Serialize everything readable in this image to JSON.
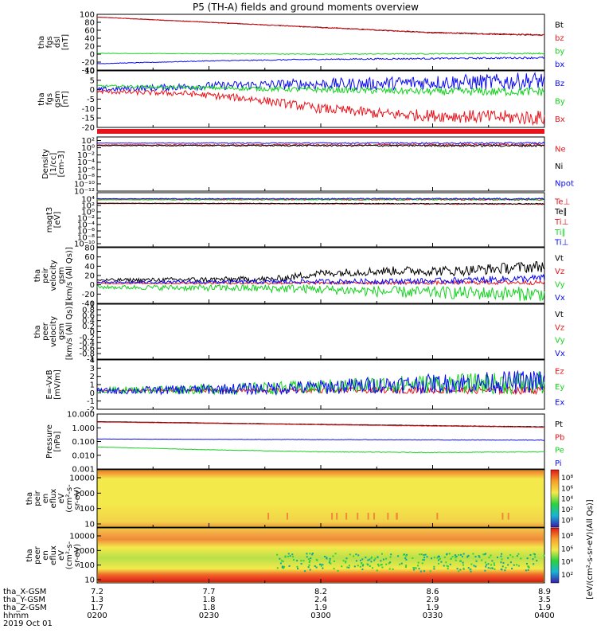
{
  "title": "P5 (TH-A) fields and ground moments overview",
  "colors": {
    "black": "#000000",
    "red": "#e8141c",
    "green": "#14d21e",
    "blue": "#0a0af5",
    "spec_bg": "#f4e94a"
  },
  "chart_data": [
    {
      "type": "line",
      "panel": "fgs_dsl",
      "ylabel": [
        "tha",
        "fgs",
        "dsl",
        "[nT]"
      ],
      "ylim": [
        -40,
        100
      ],
      "yticks": [
        100,
        80,
        60,
        40,
        20,
        0,
        -20,
        -40
      ],
      "series": [
        {
          "name": "Bt",
          "color": "black",
          "x": [
            0,
            0.5,
            1,
            1.5,
            2
          ],
          "y": [
            93,
            80,
            67,
            54,
            48
          ],
          "noise": 1
        },
        {
          "name": "bz",
          "color": "red",
          "x": [
            0,
            0.5,
            1,
            1.5,
            2
          ],
          "y": [
            93,
            80,
            67,
            54,
            48
          ],
          "noise": 1
        },
        {
          "name": "by",
          "color": "green",
          "x": [
            0,
            1,
            2
          ],
          "y": [
            2,
            0,
            2
          ],
          "noise": 1
        },
        {
          "name": "bx",
          "color": "blue",
          "x": [
            0,
            0.5,
            1,
            1.5,
            2
          ],
          "y": [
            -24,
            -17,
            -13,
            -11,
            -9
          ],
          "noise": 1.5
        }
      ]
    },
    {
      "type": "line",
      "panel": "fgs_gsm",
      "ylabel": [
        "tha",
        "fgs",
        "gsm",
        "[nT]"
      ],
      "ylim": [
        -20,
        10
      ],
      "yticks": [
        10,
        5,
        0,
        -5,
        -10,
        -15,
        -20
      ],
      "series": [
        {
          "name": "Bz",
          "color": "blue",
          "x": [
            0,
            0.5,
            0.9,
            1.2,
            1.5,
            1.8,
            2
          ],
          "y": [
            0,
            2,
            3,
            3,
            4,
            4,
            5
          ],
          "noise": 3
        },
        {
          "name": "By",
          "color": "green",
          "x": [
            0,
            0.5,
            1,
            1.5,
            2
          ],
          "y": [
            2,
            1,
            0,
            -1,
            -1
          ],
          "noise": 1.5
        },
        {
          "name": "Bx",
          "color": "red",
          "x": [
            0,
            0.4,
            0.7,
            1.0,
            1.3,
            1.6,
            2
          ],
          "y": [
            -1,
            -2,
            -5,
            -10,
            -13,
            -14,
            -15
          ],
          "noise": 2.5
        }
      ]
    },
    {
      "type": "line",
      "panel": "density",
      "ylabel": [
        "Density",
        "[1/cc]",
        "[cm-3]"
      ],
      "log": true,
      "ylim": [
        -12,
        3
      ],
      "ytick_labels": [
        "10²",
        "10⁰",
        "10⁻²",
        "10⁻⁴",
        "10⁻⁶",
        "10⁻⁸",
        "10⁻¹⁰",
        "10⁻¹²"
      ],
      "ytick_exp": [
        2,
        0,
        -2,
        -4,
        -6,
        -8,
        -10,
        -12
      ],
      "series": [
        {
          "name": "Ne",
          "color": "red",
          "x": [
            0,
            2
          ],
          "y": [
            0.8,
            0.8
          ],
          "noise": 0.2
        },
        {
          "name": "Ni",
          "color": "black",
          "x": [
            0,
            2
          ],
          "y": [
            0.6,
            0.6
          ],
          "noise": 0.2
        },
        {
          "name": "Npot",
          "color": "blue",
          "x": [
            0,
            2
          ],
          "y": [
            1.3,
            1.3
          ],
          "noise": 0.15
        }
      ]
    },
    {
      "type": "line",
      "panel": "moms_temp",
      "ylabel": [
        "magt3",
        "[eV]"
      ],
      "log": true,
      "ylim": [
        -11,
        6
      ],
      "ytick_labels": [
        "10⁴",
        "10²",
        "10⁰",
        "10⁻²",
        "10⁻⁴",
        "10⁻⁶",
        "10⁻⁸",
        "10⁻¹⁰"
      ],
      "ytick_exp": [
        4,
        2,
        0,
        -2,
        -4,
        -6,
        -8,
        -10
      ],
      "series": [
        {
          "name": "Te⊥",
          "color": "red",
          "x": [
            0,
            2
          ],
          "y": [
            2.6,
            2.4
          ],
          "noise": 0.1
        },
        {
          "name": "Te∥",
          "color": "black",
          "x": [
            0,
            2
          ],
          "y": [
            2.7,
            2.5
          ],
          "noise": 0.1
        },
        {
          "name": "Ti⊥",
          "color": "red",
          "x": [
            0,
            2
          ],
          "y": [
            3.8,
            3.8
          ],
          "noise": 0.15
        },
        {
          "name": "Ti∥",
          "color": "green",
          "x": [
            0,
            2
          ],
          "y": [
            3.9,
            3.9
          ],
          "noise": 0.2
        },
        {
          "name": "Ti⊥",
          "color": "blue",
          "x": [
            0,
            2
          ],
          "y": [
            4.1,
            4.1
          ],
          "noise": 0.15
        }
      ]
    },
    {
      "type": "line",
      "panel": "peir_velocity",
      "ylabel": [
        "tha",
        "peir",
        "velocity",
        "gsm",
        "[km/s (All Qs)]"
      ],
      "ylim": [
        -40,
        80
      ],
      "yticks": [
        80,
        60,
        40,
        20,
        0,
        -20,
        -40
      ],
      "series": [
        {
          "name": "Vt",
          "color": "black",
          "x": [
            0,
            0.8,
            1.0,
            1.3,
            1.6,
            2
          ],
          "y": [
            10,
            12,
            25,
            30,
            30,
            40
          ],
          "noise": 8
        },
        {
          "name": "Vz",
          "color": "red",
          "x": [
            0,
            2
          ],
          "y": [
            3,
            5
          ],
          "noise": 3
        },
        {
          "name": "Vy",
          "color": "green",
          "x": [
            0,
            0.9,
            1.3,
            2
          ],
          "y": [
            -5,
            -8,
            -15,
            -20
          ],
          "noise": 10
        },
        {
          "name": "Vx",
          "color": "blue",
          "x": [
            0,
            1.5,
            2
          ],
          "y": [
            5,
            8,
            14
          ],
          "noise": 5
        }
      ]
    },
    {
      "type": "line",
      "panel": "peer_velocity",
      "ylabel": [
        "tha",
        "peer",
        "velocity",
        "gsm",
        "[km/s (All Qs)]"
      ],
      "ylim": [
        -1,
        1
      ],
      "yticks": [
        1.0,
        0.8,
        0.6,
        0.4,
        0.2,
        0.0,
        -0.2,
        -0.4,
        -0.6,
        -0.8,
        -1.0
      ],
      "series": [
        {
          "name": "Vt",
          "color": "black"
        },
        {
          "name": "Vz",
          "color": "red"
        },
        {
          "name": "Vy",
          "color": "green"
        },
        {
          "name": "Vx",
          "color": "blue"
        }
      ]
    },
    {
      "type": "line",
      "panel": "efield",
      "ylabel": [
        "E=-VxB",
        "[mV/m]"
      ],
      "ylim": [
        -2,
        4
      ],
      "yticks": [
        4,
        3,
        2,
        1,
        0,
        -1,
        -2
      ],
      "series": [
        {
          "name": "Ez",
          "color": "red",
          "x": [
            0,
            2
          ],
          "y": [
            0.3,
            0.3
          ],
          "noise": 0.3
        },
        {
          "name": "Ey",
          "color": "green",
          "x": [
            0,
            0.9,
            1.3,
            2
          ],
          "y": [
            0.3,
            0.6,
            1,
            1.2
          ],
          "noise": 0.9
        },
        {
          "name": "Ex",
          "color": "blue",
          "x": [
            0,
            0.9,
            1.3,
            2
          ],
          "y": [
            0.2,
            0.6,
            1,
            1.4
          ],
          "noise": 0.9
        }
      ]
    },
    {
      "type": "line",
      "panel": "pressure",
      "ylabel": [
        "Pressure",
        "[nPa]"
      ],
      "log": true,
      "ylim": [
        -3,
        1
      ],
      "ytick_labels": [
        "10.000",
        "1.000",
        "0.100",
        "0.010",
        "0.001"
      ],
      "ytick_exp": [
        1,
        0,
        -1,
        -2,
        -3
      ],
      "series": [
        {
          "name": "Pt",
          "color": "black",
          "x": [
            0,
            1,
            2
          ],
          "y": [
            0.45,
            0.25,
            0.07
          ],
          "noise": 0.01
        },
        {
          "name": "Pb",
          "color": "red",
          "x": [
            0,
            1,
            2
          ],
          "y": [
            0.42,
            0.22,
            0.04
          ],
          "noise": 0.01
        },
        {
          "name": "Pe",
          "color": "green",
          "x": [
            0,
            0.5,
            1,
            1.5,
            2
          ],
          "y": [
            -1.4,
            -1.6,
            -1.75,
            -1.8,
            -1.75
          ],
          "noise": 0.02
        },
        {
          "name": "Pi",
          "color": "blue",
          "x": [
            0,
            2
          ],
          "y": [
            -0.82,
            -0.9
          ],
          "noise": 0.015
        }
      ]
    },
    {
      "type": "heatmap",
      "panel": "peir_en_eflux",
      "ylabel": [
        "tha",
        "peir",
        "en",
        "eflux",
        "eV",
        "(cm²-s-",
        "sr-eV)"
      ],
      "yticks": [
        "10000",
        "1000",
        "100",
        "10"
      ],
      "colorbar": [
        "10⁸",
        "10⁶",
        "10⁴",
        "10²",
        "10⁰"
      ]
    },
    {
      "type": "heatmap",
      "panel": "peer_en_eflux",
      "ylabel": [
        "tha",
        "peer",
        "en",
        "eflux",
        "eV",
        "(cm²-s-",
        "sr-eV)"
      ],
      "yticks": [
        "10000",
        "1000",
        "100",
        "10"
      ],
      "colorbar": [
        "10⁸",
        "10⁶",
        "10⁴",
        "10²"
      ]
    }
  ],
  "colorbar_label": "[eV/(cm²-s-sr-eV)(All Qs)]",
  "axis": {
    "rows": [
      {
        "label": "tha_X-GSM",
        "values": [
          "7.2",
          "7.7",
          "8.2",
          "8.6",
          "8.9"
        ]
      },
      {
        "label": "tha_Y-GSM",
        "values": [
          "1.3",
          "1.8",
          "2.4",
          "2.9",
          "3.5"
        ]
      },
      {
        "label": "tha_Z-GSM",
        "values": [
          "1.7",
          "1.8",
          "1.9",
          "1.9",
          "1.9"
        ]
      },
      {
        "label": "hhmm",
        "values": [
          "0200",
          "0230",
          "0300",
          "0330",
          "0400"
        ]
      }
    ],
    "date": "2019 Oct 01"
  }
}
